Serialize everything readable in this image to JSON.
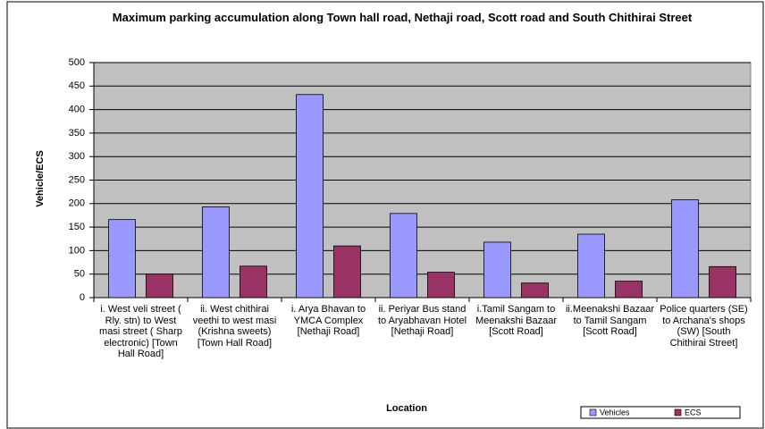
{
  "chart_data": {
    "type": "bar",
    "title": "Maximum parking accumulation along Town hall road,  Nethaji road, Scott road and South Chithirai Street",
    "x_label": "Location",
    "y_label": "Vehicle/ECS",
    "categories": [
      "i. West veli street ( Rly. stn) to West masi street ( Sharp electronic) [Town Hall Road]",
      "ii. West chithirai veethi to west masi (Krishna sweets) [Town Hall Road]",
      "i. Arya Bhavan to YMCA Complex [Nethaji Road]",
      "ii. Periyar Bus stand to Aryabhavan Hotel [Nethaji Road]",
      "i.Tamil Sangam to Meenakshi Bazaar [Scott Road]",
      "ii.Meenakshi Bazaar to Tamil Sangam [Scott Road]",
      "Police quarters (SE) to Archana's shops (SW) [South Chithirai Street]"
    ],
    "series": [
      {
        "name": "Vehicles",
        "color": "#9999ff",
        "values": [
          166,
          193,
          432,
          179,
          118,
          135,
          208
        ]
      },
      {
        "name": "ECS",
        "color": "#993366",
        "values": [
          50,
          67,
          110,
          54,
          31,
          35,
          66
        ]
      }
    ],
    "ylim": [
      0,
      500
    ],
    "yticks": [
      0,
      50,
      100,
      150,
      200,
      250,
      300,
      350,
      400,
      450,
      500
    ],
    "grid": true,
    "legend": "bottom-right"
  }
}
